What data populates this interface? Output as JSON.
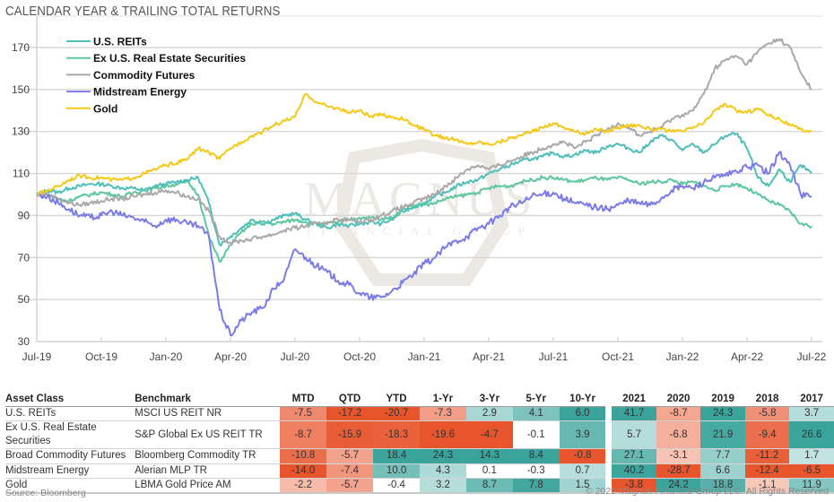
{
  "title": "CALENDAR YEAR & TRAILING TOTAL RETURNS",
  "chart_data": {
    "type": "line",
    "title": "CALENDAR YEAR & TRAILING TOTAL RETURNS",
    "xlabel": "",
    "ylabel": "",
    "ylim": [
      30,
      175
    ],
    "yticks": [
      30,
      50,
      70,
      90,
      110,
      130,
      150,
      170
    ],
    "xlim": [
      0,
      72
    ],
    "x_step_note": "half-month steps from Jul-19",
    "xticks": [
      {
        "x": 0,
        "label": "Jul-19"
      },
      {
        "x": 6,
        "label": "Oct-19"
      },
      {
        "x": 12,
        "label": "Jan-20"
      },
      {
        "x": 18,
        "label": "Apr-20"
      },
      {
        "x": 24,
        "label": "Jul-20"
      },
      {
        "x": 30,
        "label": "Oct-20"
      },
      {
        "x": 36,
        "label": "Jan-21"
      },
      {
        "x": 42,
        "label": "Apr-21"
      },
      {
        "x": 48,
        "label": "Jul-21"
      },
      {
        "x": 54,
        "label": "Oct-21"
      },
      {
        "x": 60,
        "label": "Jan-22"
      },
      {
        "x": 66,
        "label": "Apr-22"
      },
      {
        "x": 72,
        "label": "Jul-22"
      }
    ],
    "grid": true,
    "legend_position": "top-left",
    "series": [
      {
        "name": "U.S. REITs",
        "color": "#4dbfb8",
        "values": [
          100,
          102,
          101,
          103,
          104,
          105,
          105,
          104,
          103,
          103,
          102,
          104,
          105,
          106,
          107,
          108,
          96,
          76,
          80,
          84,
          88,
          86,
          88,
          90,
          91,
          88,
          86,
          84,
          86,
          85,
          86,
          87,
          86,
          88,
          92,
          94,
          96,
          99,
          101,
          104,
          106,
          107,
          110,
          112,
          114,
          116,
          117,
          118,
          120,
          118,
          119,
          121,
          120,
          123,
          124,
          122,
          120,
          125,
          128,
          126,
          121,
          124,
          120,
          124,
          128,
          129,
          122,
          108,
          104,
          112,
          106,
          114,
          110
        ]
      },
      {
        "name": "Ex U.S. Real Estate Securities",
        "color": "#5cc69c",
        "values": [
          100,
          100,
          98,
          97,
          99,
          100,
          101,
          100,
          99,
          101,
          102,
          103,
          104,
          105,
          106,
          100,
          80,
          68,
          76,
          82,
          86,
          87,
          86,
          87,
          88,
          87,
          86,
          86,
          87,
          88,
          89,
          89,
          88,
          89,
          93,
          95,
          95,
          96,
          98,
          99,
          100,
          101,
          103,
          104,
          104,
          106,
          107,
          108,
          108,
          107,
          106,
          107,
          108,
          107,
          108,
          107,
          105,
          106,
          106,
          107,
          105,
          106,
          104,
          102,
          104,
          105,
          103,
          100,
          97,
          95,
          92,
          86,
          85
        ]
      },
      {
        "name": "Commodity Futures",
        "color": "#a9a9a9",
        "values": [
          100,
          100,
          98,
          96,
          95,
          96,
          97,
          98,
          98,
          99,
          100,
          101,
          102,
          101,
          99,
          98,
          92,
          80,
          77,
          78,
          79,
          80,
          81,
          83,
          84,
          85,
          86,
          87,
          88,
          88,
          87,
          88,
          90,
          92,
          94,
          96,
          98,
          100,
          104,
          108,
          112,
          114,
          112,
          114,
          116,
          118,
          120,
          122,
          124,
          125,
          122,
          125,
          128,
          131,
          134,
          132,
          128,
          130,
          132,
          136,
          138,
          140,
          148,
          160,
          164,
          166,
          162,
          168,
          172,
          174,
          170,
          158,
          150
        ]
      },
      {
        "name": "Midstream Energy",
        "color": "#7b7be8",
        "values": [
          100,
          99,
          96,
          93,
          90,
          89,
          90,
          92,
          90,
          89,
          87,
          85,
          88,
          88,
          86,
          85,
          80,
          45,
          33,
          40,
          44,
          46,
          55,
          60,
          74,
          70,
          66,
          63,
          59,
          57,
          53,
          51,
          51,
          54,
          58,
          62,
          67,
          70,
          75,
          78,
          80,
          84,
          86,
          90,
          94,
          96,
          99,
          100,
          101,
          98,
          96,
          95,
          94,
          93,
          95,
          97,
          96,
          95,
          98,
          102,
          104,
          103,
          106,
          108,
          109,
          111,
          113,
          114,
          110,
          120,
          114,
          100,
          99
        ]
      },
      {
        "name": "Gold",
        "color": "#f4c816",
        "values": [
          100,
          102,
          104,
          107,
          109,
          108,
          108,
          107,
          107,
          108,
          110,
          112,
          114,
          115,
          117,
          122,
          120,
          117,
          122,
          125,
          128,
          130,
          133,
          135,
          137,
          148,
          144,
          142,
          141,
          139,
          140,
          137,
          138,
          137,
          136,
          133,
          131,
          128,
          127,
          126,
          124,
          125,
          124,
          125,
          127,
          128,
          130,
          132,
          134,
          132,
          130,
          129,
          131,
          130,
          132,
          133,
          133,
          131,
          131,
          130,
          130,
          132,
          134,
          140,
          143,
          140,
          139,
          141,
          138,
          136,
          133,
          131,
          130
        ]
      }
    ]
  },
  "table": {
    "headers": {
      "asset_class": "Asset Class",
      "benchmark": "Benchmark",
      "trailing": [
        "MTD",
        "QTD",
        "YTD",
        "1-Yr",
        "3-Yr",
        "5-Yr",
        "10-Yr"
      ],
      "calendar": [
        "2021",
        "2020",
        "2019",
        "2018",
        "2017"
      ]
    },
    "rows": [
      {
        "asset_class": "U.S. REITs",
        "benchmark": "MSCI US REIT NR",
        "trailing": [
          "-7.5",
          "-17.2",
          "-20.7",
          "-7.3",
          "2.9",
          "4.1",
          "6.0"
        ],
        "calendar": [
          "41.7",
          "-8.7",
          "24.3",
          "-5.8",
          "3.7"
        ]
      },
      {
        "asset_class": "Ex U.S. Real Estate Securities",
        "benchmark": "S&P Global Ex US REIT TR",
        "trailing": [
          "-8.7",
          "-15.9",
          "-18.3",
          "-19.6",
          "-4.7",
          "-0.1",
          "3.9"
        ],
        "calendar": [
          "5.7",
          "-6.8",
          "21.9",
          "-9.4",
          "26.6"
        ]
      },
      {
        "asset_class": "Broad Commodity Futures",
        "benchmark": "Bloomberg Commodity TR",
        "trailing": [
          "-10.8",
          "-5.7",
          "18.4",
          "24.3",
          "14.3",
          "8.4",
          "-0.8"
        ],
        "calendar": [
          "27.1",
          "-3.1",
          "7.7",
          "-11.2",
          "1.7"
        ]
      },
      {
        "asset_class": "Midstream Energy",
        "benchmark": "Alerian MLP TR",
        "trailing": [
          "-14.0",
          "-7.4",
          "10.0",
          "4.3",
          "0.1",
          "-0.3",
          "0.7"
        ],
        "calendar": [
          "40.2",
          "-28.7",
          "6.6",
          "-12.4",
          "-6.5"
        ]
      },
      {
        "asset_class": "Gold",
        "benchmark": "LBMA Gold Price AM",
        "trailing": [
          "-2.2",
          "-5.7",
          "-0.4",
          "3.2",
          "8.7",
          "7.8",
          "1.5"
        ],
        "calendar": [
          "-3.8",
          "24.2",
          "18.8",
          "-1.1",
          "11.9"
        ]
      }
    ],
    "colors": {
      "positive": "#3aa39c",
      "negative": "#e8552c",
      "neutral": "#ffffff"
    }
  },
  "watermark": {
    "line1": "MAGNUS",
    "line2": "FINANCIAL GROUP"
  },
  "source": "Source: Bloomberg",
  "copyright": "© 2022 Magnus Financial Group LLC. All Rights Reserved"
}
